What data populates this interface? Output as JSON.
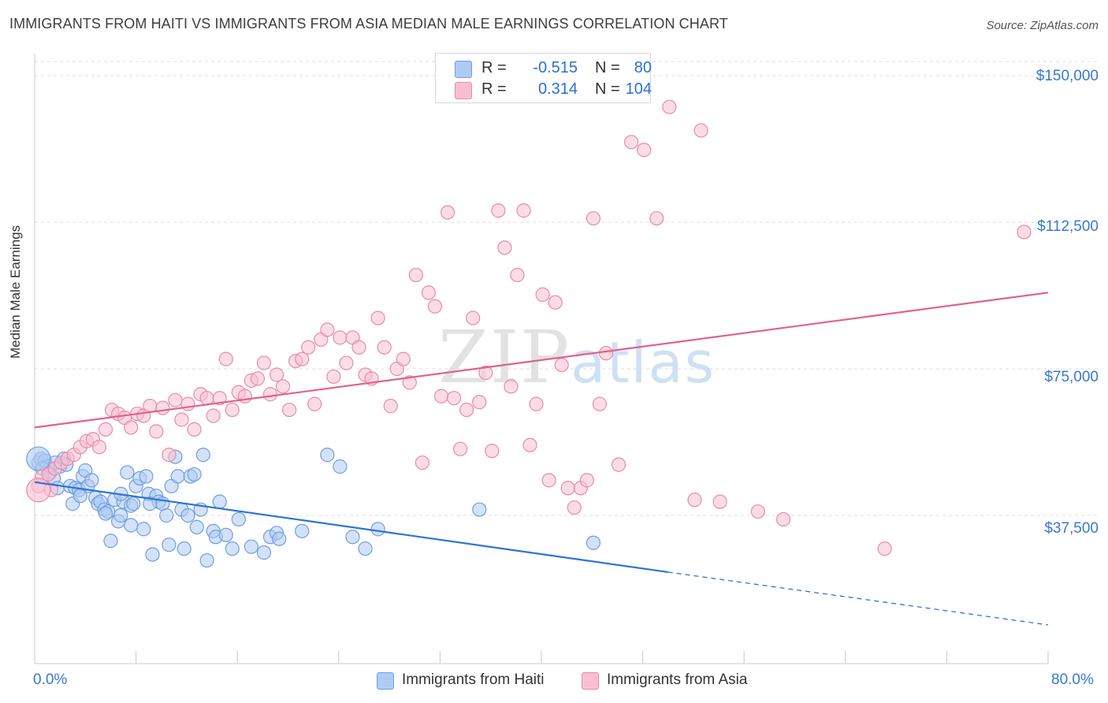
{
  "title": "IMMIGRANTS FROM HAITI VS IMMIGRANTS FROM ASIA MEDIAN MALE EARNINGS CORRELATION CHART",
  "source": "Source: ZipAtlas.com",
  "watermark": {
    "zip": "ZIP",
    "atlas": "atlas"
  },
  "legend_top": [
    {
      "r_label": "R =",
      "r_value": "-0.515",
      "n_label": "N =",
      "n_value": "80",
      "color": "#aecbf3",
      "border": "#6f9fe0"
    },
    {
      "r_label": "R =",
      "r_value": "0.314",
      "n_label": "N =",
      "n_value": "104",
      "color": "#f9bfd0",
      "border": "#ea8aa9"
    }
  ],
  "legend_bottom": [
    {
      "label": "Immigrants from Haiti",
      "color": "#aecbf3",
      "border": "#6f9fe0"
    },
    {
      "label": "Immigrants from Asia",
      "color": "#f9bfd0",
      "border": "#ea8aa9"
    }
  ],
  "chart_data": {
    "type": "scatter",
    "title": "IMMIGRANTS FROM HAITI VS IMMIGRANTS FROM ASIA MEDIAN MALE EARNINGS CORRELATION CHART",
    "xlabel": "",
    "ylabel": "Median Male Earnings",
    "xlim": [
      0,
      80
    ],
    "ylim": [
      0,
      152000
    ],
    "x_tick_labels": [
      "0.0%",
      "80.0%"
    ],
    "y_ticks": [
      37500,
      75000,
      112500,
      150000
    ],
    "y_tick_labels": [
      "$37,500",
      "$75,000",
      "$112,500",
      "$150,000"
    ],
    "grid": true,
    "series": [
      {
        "name": "Immigrants from Haiti",
        "color": "#6f9fe0",
        "fill": "#aecbf3",
        "trend": {
          "x0": 0,
          "y0": 46000,
          "x1": 50,
          "y1": 23000,
          "dash_to_x": 80,
          "dash_to_y": 9500
        },
        "points": [
          [
            0.3,
            51000
          ],
          [
            0.5,
            52000
          ],
          [
            0.8,
            51500
          ],
          [
            1.0,
            50000
          ],
          [
            1.2,
            48500
          ],
          [
            1.5,
            47000
          ],
          [
            1.8,
            44500
          ],
          [
            2.0,
            50000
          ],
          [
            2.3,
            52000
          ],
          [
            2.5,
            50500
          ],
          [
            2.8,
            45000
          ],
          [
            3.0,
            40500
          ],
          [
            3.2,
            44500
          ],
          [
            3.5,
            44000
          ],
          [
            3.8,
            47500
          ],
          [
            4.0,
            49000
          ],
          [
            4.2,
            45000
          ],
          [
            4.5,
            46500
          ],
          [
            4.8,
            42000
          ],
          [
            5.0,
            40500
          ],
          [
            5.2,
            41000
          ],
          [
            5.5,
            39000
          ],
          [
            5.8,
            38500
          ],
          [
            6.0,
            31000
          ],
          [
            6.3,
            41500
          ],
          [
            6.6,
            36000
          ],
          [
            6.8,
            37500
          ],
          [
            7.0,
            41000
          ],
          [
            7.3,
            48500
          ],
          [
            7.6,
            40000
          ],
          [
            7.8,
            40500
          ],
          [
            8.0,
            45000
          ],
          [
            8.3,
            47000
          ],
          [
            8.6,
            34000
          ],
          [
            8.8,
            47500
          ],
          [
            9.0,
            43000
          ],
          [
            9.3,
            27500
          ],
          [
            9.6,
            42500
          ],
          [
            9.8,
            41000
          ],
          [
            10.1,
            40500
          ],
          [
            10.4,
            37500
          ],
          [
            10.6,
            30000
          ],
          [
            10.8,
            45000
          ],
          [
            11.1,
            52500
          ],
          [
            11.3,
            47500
          ],
          [
            11.6,
            39000
          ],
          [
            11.8,
            29000
          ],
          [
            12.1,
            37500
          ],
          [
            12.3,
            47500
          ],
          [
            12.6,
            48000
          ],
          [
            12.8,
            34500
          ],
          [
            13.1,
            39000
          ],
          [
            13.3,
            53000
          ],
          [
            13.6,
            26000
          ],
          [
            14.1,
            33500
          ],
          [
            14.3,
            32000
          ],
          [
            14.6,
            41000
          ],
          [
            15.1,
            32500
          ],
          [
            15.6,
            29000
          ],
          [
            16.1,
            36500
          ],
          [
            17.1,
            29500
          ],
          [
            18.1,
            28000
          ],
          [
            18.6,
            32000
          ],
          [
            19.1,
            33000
          ],
          [
            19.3,
            31500
          ],
          [
            21.1,
            33500
          ],
          [
            23.1,
            53000
          ],
          [
            24.1,
            50000
          ],
          [
            25.1,
            32000
          ],
          [
            26.1,
            29000
          ],
          [
            27.1,
            34000
          ],
          [
            35.1,
            39000
          ],
          [
            44.1,
            30500
          ],
          [
            0.6,
            49500
          ],
          [
            1.6,
            51000
          ],
          [
            3.6,
            42500
          ],
          [
            5.6,
            38000
          ],
          [
            6.8,
            43000
          ],
          [
            7.6,
            35000
          ],
          [
            9.1,
            40500
          ]
        ],
        "big_point": [
          0.3,
          52000
        ]
      },
      {
        "name": "Immigrants from Asia",
        "color": "#ea8aa9",
        "fill": "#f9bfd0",
        "trend": {
          "x0": 0,
          "y0": 60000,
          "x1": 80,
          "y1": 94500
        },
        "points": [
          [
            0.3,
            45000
          ],
          [
            0.6,
            47500
          ],
          [
            1.1,
            48000
          ],
          [
            1.6,
            49500
          ],
          [
            2.1,
            51000
          ],
          [
            2.6,
            52000
          ],
          [
            3.1,
            53000
          ],
          [
            3.6,
            55000
          ],
          [
            4.1,
            56500
          ],
          [
            4.6,
            57000
          ],
          [
            5.1,
            55000
          ],
          [
            5.6,
            59500
          ],
          [
            6.1,
            64500
          ],
          [
            6.6,
            63500
          ],
          [
            7.1,
            62500
          ],
          [
            7.6,
            60000
          ],
          [
            8.1,
            63500
          ],
          [
            8.6,
            63000
          ],
          [
            9.1,
            65500
          ],
          [
            9.6,
            59000
          ],
          [
            10.1,
            65000
          ],
          [
            10.6,
            53000
          ],
          [
            11.1,
            67000
          ],
          [
            11.6,
            62000
          ],
          [
            12.1,
            66000
          ],
          [
            12.6,
            59500
          ],
          [
            13.1,
            68500
          ],
          [
            13.6,
            67500
          ],
          [
            14.1,
            63000
          ],
          [
            14.6,
            67500
          ],
          [
            15.1,
            77500
          ],
          [
            15.6,
            64500
          ],
          [
            16.1,
            69000
          ],
          [
            16.6,
            68000
          ],
          [
            17.1,
            72000
          ],
          [
            17.6,
            72500
          ],
          [
            18.1,
            76500
          ],
          [
            18.6,
            68500
          ],
          [
            19.1,
            73500
          ],
          [
            19.6,
            70500
          ],
          [
            20.1,
            64500
          ],
          [
            20.6,
            77000
          ],
          [
            21.1,
            77500
          ],
          [
            21.6,
            80500
          ],
          [
            22.1,
            66000
          ],
          [
            22.6,
            82500
          ],
          [
            23.1,
            85000
          ],
          [
            23.6,
            73000
          ],
          [
            24.1,
            83000
          ],
          [
            24.6,
            76500
          ],
          [
            25.1,
            83000
          ],
          [
            25.6,
            80500
          ],
          [
            26.1,
            73500
          ],
          [
            26.6,
            72500
          ],
          [
            27.1,
            88000
          ],
          [
            27.6,
            80500
          ],
          [
            28.1,
            65500
          ],
          [
            28.6,
            75000
          ],
          [
            29.1,
            77500
          ],
          [
            29.6,
            71500
          ],
          [
            30.1,
            99000
          ],
          [
            30.6,
            51000
          ],
          [
            31.1,
            94500
          ],
          [
            31.6,
            91000
          ],
          [
            32.1,
            68000
          ],
          [
            32.6,
            115000
          ],
          [
            33.1,
            67500
          ],
          [
            33.6,
            54500
          ],
          [
            34.1,
            64500
          ],
          [
            34.6,
            88000
          ],
          [
            35.1,
            66500
          ],
          [
            35.6,
            74000
          ],
          [
            36.1,
            54000
          ],
          [
            36.6,
            115500
          ],
          [
            37.1,
            106000
          ],
          [
            37.6,
            70500
          ],
          [
            38.1,
            99000
          ],
          [
            38.6,
            115500
          ],
          [
            39.1,
            55500
          ],
          [
            39.6,
            66000
          ],
          [
            40.1,
            94000
          ],
          [
            40.6,
            46500
          ],
          [
            41.1,
            92000
          ],
          [
            41.6,
            76000
          ],
          [
            42.1,
            44500
          ],
          [
            42.6,
            39500
          ],
          [
            43.1,
            44500
          ],
          [
            43.6,
            46500
          ],
          [
            44.1,
            113500
          ],
          [
            44.6,
            66000
          ],
          [
            45.1,
            79000
          ],
          [
            46.1,
            50500
          ],
          [
            47.1,
            133000
          ],
          [
            48.1,
            131000
          ],
          [
            49.1,
            113500
          ],
          [
            50.1,
            142000
          ],
          [
            52.1,
            41500
          ],
          [
            52.6,
            136000
          ],
          [
            54.1,
            41000
          ],
          [
            57.1,
            38500
          ],
          [
            59.1,
            36500
          ],
          [
            67.1,
            29000
          ],
          [
            78.1,
            110000
          ],
          [
            1.3,
            44000
          ]
        ],
        "big_point": [
          0.3,
          44000
        ]
      }
    ]
  }
}
